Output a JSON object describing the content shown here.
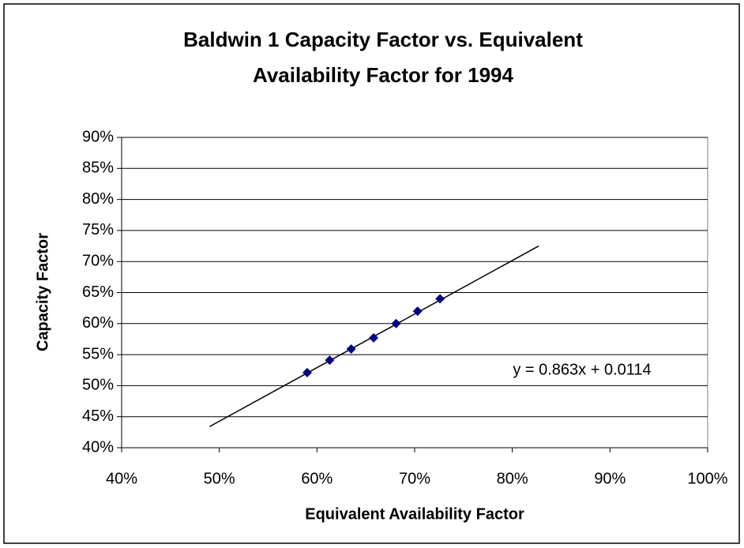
{
  "chart_data": {
    "type": "scatter",
    "title": [
      "Baldwin 1 Capacity Factor vs. Equivalent",
      "Availability Factor for 1994"
    ],
    "x_label": "Equivalent Availability Factor",
    "y_label": "Capacity Factor",
    "series": [
      {
        "color": "#000080",
        "x": [
          59.0,
          61.3,
          63.5,
          65.8,
          68.1,
          70.3,
          72.6
        ],
        "values": [
          52.1,
          54.1,
          55.9,
          57.7,
          60.0,
          62.0,
          64.0
        ]
      }
    ],
    "trendline": {
      "label": "y = 0.863x + 0.0114",
      "color": "#000000",
      "x": [
        49,
        82.7
      ],
      "values": [
        43.4,
        72.5
      ]
    },
    "xlim": [
      40,
      100
    ],
    "xticks": [
      {
        "value": 40,
        "label": "40%"
      },
      {
        "value": 50,
        "label": "50%"
      },
      {
        "value": 60,
        "label": "60%"
      },
      {
        "value": 70,
        "label": "70%"
      },
      {
        "value": 80,
        "label": "80%"
      },
      {
        "value": 90,
        "label": "90%"
      },
      {
        "value": 100,
        "label": "100%"
      }
    ],
    "ylim": [
      40,
      90
    ],
    "yticks": [
      {
        "value": 40,
        "label": "40%"
      },
      {
        "value": 45,
        "label": "45%"
      },
      {
        "value": 50,
        "label": "50%"
      },
      {
        "value": 55,
        "label": "55%"
      },
      {
        "value": 60,
        "label": "60%"
      },
      {
        "value": 65,
        "label": "65%"
      },
      {
        "value": 70,
        "label": "70%"
      },
      {
        "value": 75,
        "label": "75%"
      },
      {
        "value": 80,
        "label": "80%"
      },
      {
        "value": 85,
        "label": "85%"
      },
      {
        "value": 90,
        "label": "90%"
      }
    ],
    "grid": true
  }
}
